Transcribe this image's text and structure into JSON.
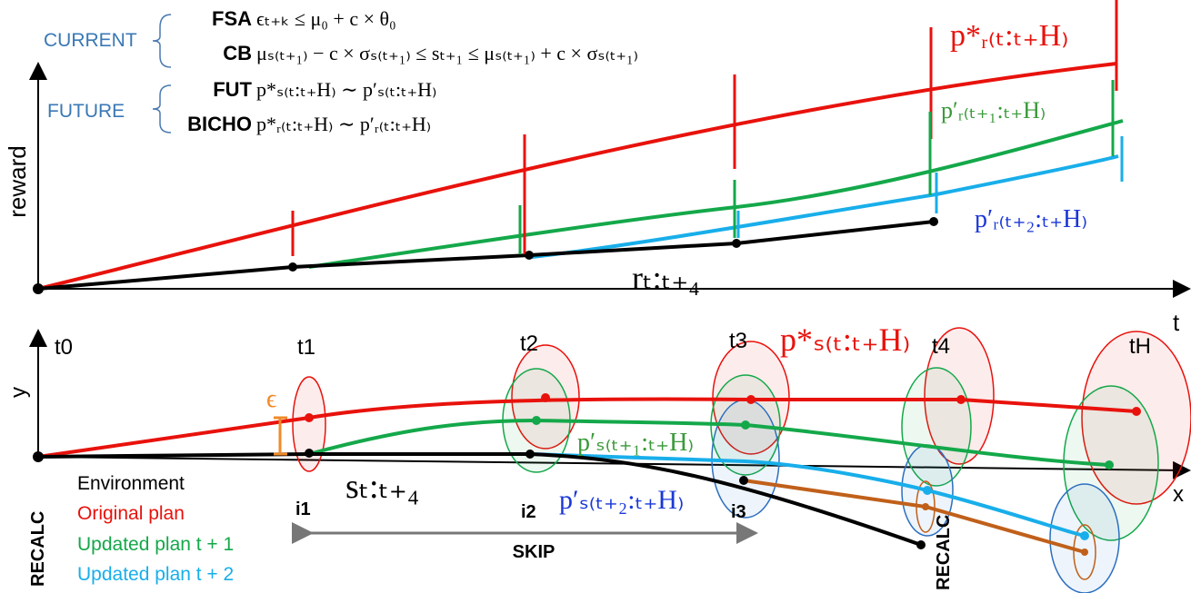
{
  "conditions": {
    "current": "CURRENT",
    "future": "FUTURE",
    "rows": [
      {
        "name": "FSA",
        "formula": "ϵₜ₊ₖ ≤ μ₀ + c × θ₀"
      },
      {
        "name": "CB",
        "formula": "μₛ₍ₜ₊₁₎ − c × σₛ₍ₜ₊₁₎ ≤ sₜ₊₁ ≤ μₛ₍ₜ₊₁₎ + c × σₛ₍ₜ₊₁₎"
      },
      {
        "name": "FUT",
        "formula": "p*ₛ₍ₜ:ₜ₊H₎ ∼ p′ₛ₍ₜ:ₜ₊H₎"
      },
      {
        "name": "BICHO",
        "formula": "p*ᵣ₍ₜ:ₜ₊H₎ ∼ p′ᵣ₍ₜ:ₜ₊H₎"
      }
    ]
  },
  "top": {
    "y_label": "reward",
    "x_label": "t",
    "curves": [
      "p*ᵣ₍ₜ:ₜ₊H₎",
      "p′ᵣ₍ₜ₊₁:ₜ₊H₎",
      "p′ᵣ₍ₜ₊₂:ₜ₊H₎",
      "rₜ:ₜ₊₄"
    ]
  },
  "bottom": {
    "y_label": "y",
    "x_label": "x",
    "times": [
      "t0",
      "t1",
      "t2",
      "t3",
      "t4",
      "tH"
    ],
    "epsilon": "ϵ",
    "curves": [
      "p*ₛ₍ₜ:ₜ₊H₎",
      "p′ₛ₍ₜ₊₁:ₜ₊H₎",
      "p′ₛ₍ₜ₊₂:ₜ₊H₎",
      "sₜ:ₜ₊₄"
    ],
    "steps": [
      "i1",
      "i2",
      "i3"
    ],
    "skip": "SKIP",
    "recalc": "RECALC"
  },
  "legend": {
    "title": "RECALC",
    "items": [
      "Environment",
      "Original plan",
      "Updated plan t + 1",
      "Updated plan t + 2"
    ]
  }
}
